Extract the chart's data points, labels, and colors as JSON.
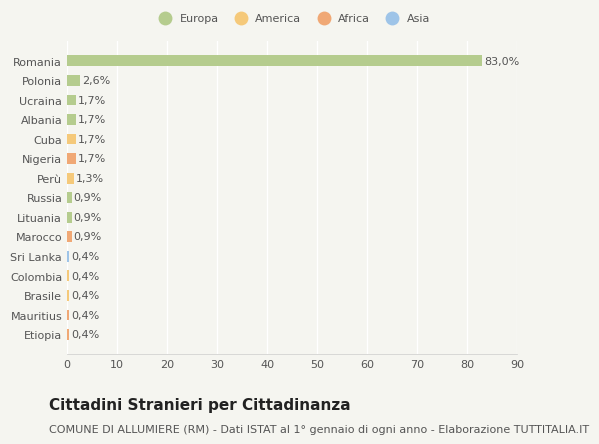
{
  "countries": [
    "Romania",
    "Polonia",
    "Ucraina",
    "Albania",
    "Cuba",
    "Nigeria",
    "Perù",
    "Russia",
    "Lituania",
    "Marocco",
    "Sri Lanka",
    "Colombia",
    "Brasile",
    "Mauritius",
    "Etiopia"
  ],
  "values": [
    83.0,
    2.6,
    1.7,
    1.7,
    1.7,
    1.7,
    1.3,
    0.9,
    0.9,
    0.9,
    0.4,
    0.4,
    0.4,
    0.4,
    0.4
  ],
  "labels": [
    "83,0%",
    "2,6%",
    "1,7%",
    "1,7%",
    "1,7%",
    "1,7%",
    "1,3%",
    "0,9%",
    "0,9%",
    "0,9%",
    "0,4%",
    "0,4%",
    "0,4%",
    "0,4%",
    "0,4%"
  ],
  "colors": [
    "#b5cc8e",
    "#b5cc8e",
    "#b5cc8e",
    "#b5cc8e",
    "#f5c97a",
    "#f0a875",
    "#f5c97a",
    "#b5cc8e",
    "#b5cc8e",
    "#f0a875",
    "#9ec4e8",
    "#f5c97a",
    "#f5c97a",
    "#f0a875",
    "#f0a875"
  ],
  "legend_labels": [
    "Europa",
    "America",
    "Africa",
    "Asia"
  ],
  "legend_colors": [
    "#b5cc8e",
    "#f5c97a",
    "#f0a875",
    "#9ec4e8"
  ],
  "xlim": [
    0,
    90
  ],
  "xticks": [
    0,
    10,
    20,
    30,
    40,
    50,
    60,
    70,
    80,
    90
  ],
  "background_color": "#f5f5f0",
  "grid_color": "#ffffff",
  "bar_height": 0.55,
  "title": "Cittadini Stranieri per Cittadinanza",
  "subtitle": "COMUNE DI ALLUMIERE (RM) - Dati ISTAT al 1° gennaio di ogni anno - Elaborazione TUTTITALIA.IT",
  "title_fontsize": 11,
  "subtitle_fontsize": 8,
  "label_fontsize": 8,
  "tick_fontsize": 8
}
